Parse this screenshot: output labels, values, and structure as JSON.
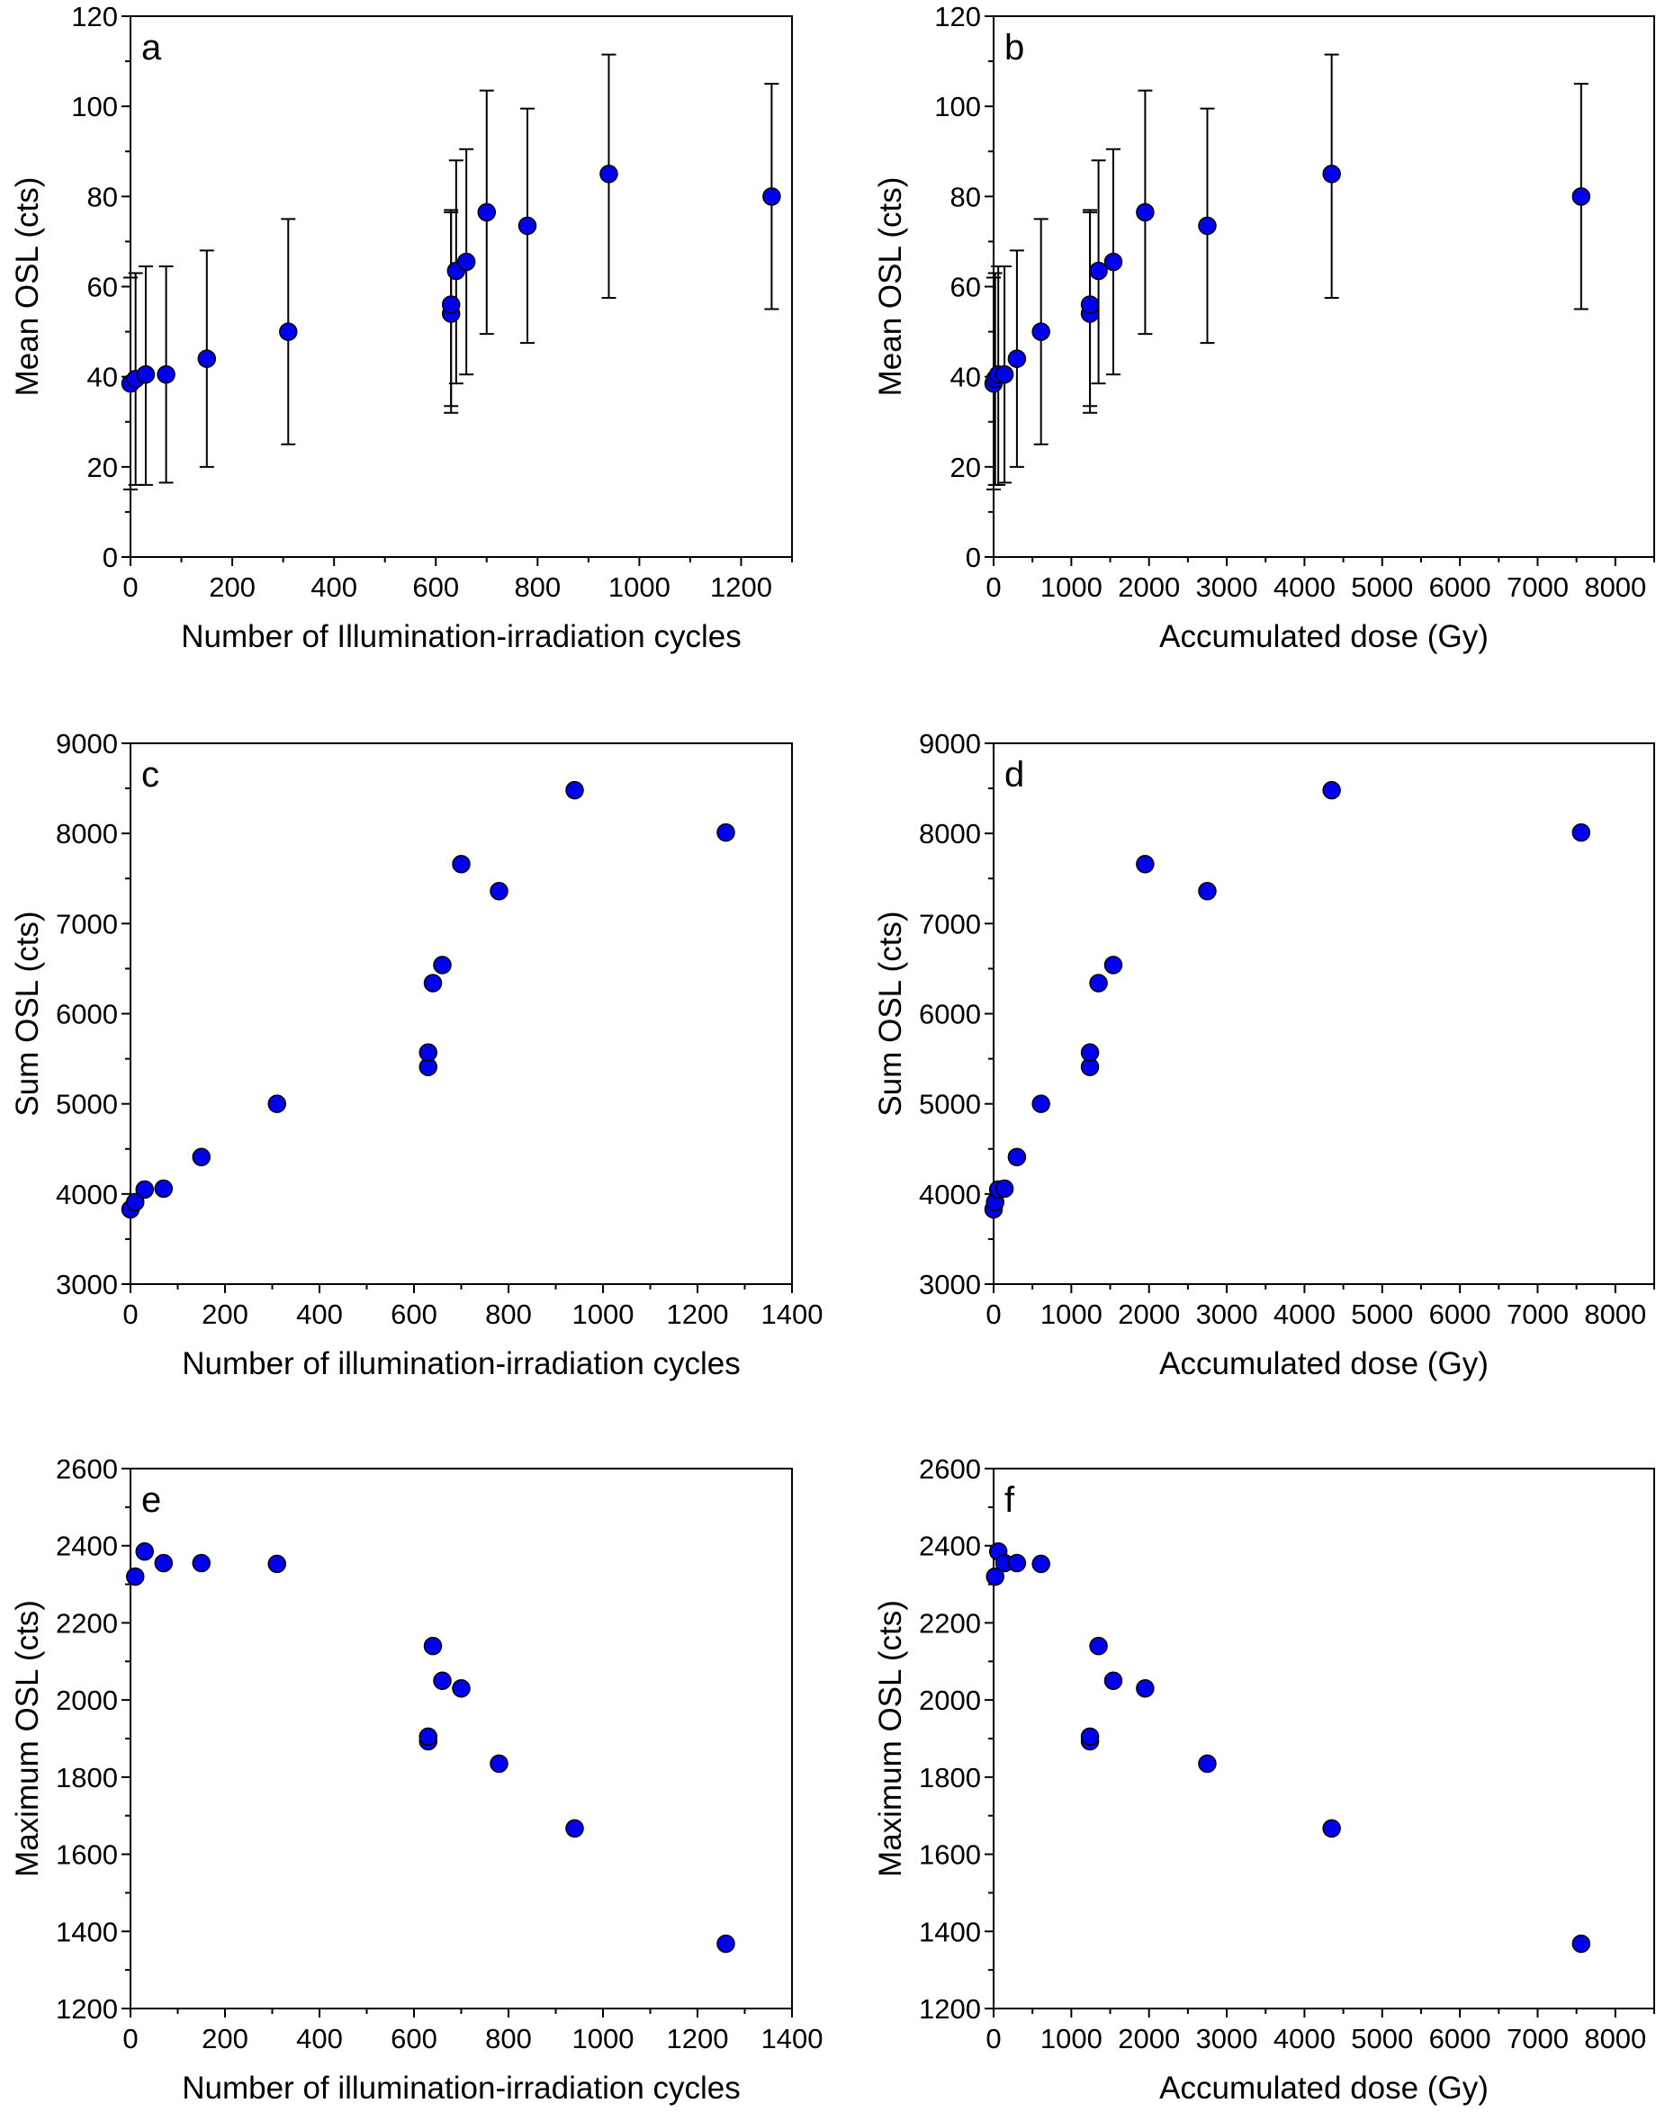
{
  "figure": {
    "marker_fill": "#0000ee",
    "marker_stroke": "#000000",
    "axis_color": "#000000"
  },
  "chart_data": [
    {
      "panel": "a",
      "type": "scatter",
      "xlabel": "Number of Illumination-irradiation cycles",
      "ylabel": "Mean OSL (cts)",
      "xlim": [
        0,
        1300
      ],
      "ylim": [
        0,
        120
      ],
      "xticks": [
        0,
        200,
        400,
        600,
        800,
        1000,
        1200
      ],
      "yticks": [
        0,
        20,
        40,
        60,
        80,
        100,
        120
      ],
      "x": [
        0,
        10,
        30,
        70,
        150,
        310,
        630,
        630,
        640,
        660,
        700,
        780,
        940,
        1260
      ],
      "y": [
        38.5,
        39.5,
        40.5,
        40.5,
        44,
        50,
        54,
        56,
        63.5,
        65.5,
        76.5,
        73.5,
        85,
        80
      ],
      "yerr_low": [
        15,
        16,
        16,
        16.5,
        20,
        25,
        32,
        33.5,
        38.5,
        40.5,
        49.5,
        47.5,
        57.5,
        55
      ],
      "yerr_high": [
        62,
        63,
        64.5,
        64.5,
        68,
        75,
        77,
        76.5,
        88,
        90.5,
        103.5,
        99.5,
        111.5,
        105
      ]
    },
    {
      "panel": "b",
      "type": "scatter",
      "xlabel": "Accumulated dose (Gy)",
      "ylabel": "Mean OSL (cts)",
      "xlim": [
        0,
        8500
      ],
      "ylim": [
        0,
        120
      ],
      "xticks": [
        0,
        1000,
        2000,
        3000,
        4000,
        5000,
        6000,
        7000,
        8000
      ],
      "yticks": [
        0,
        20,
        40,
        60,
        80,
        100,
        120
      ],
      "x": [
        0,
        20,
        60,
        140,
        300,
        610,
        1240,
        1240,
        1350,
        1540,
        1950,
        2750,
        4350,
        7560
      ],
      "y": [
        38.5,
        39.5,
        40.5,
        40.5,
        44,
        50,
        54,
        56,
        63.5,
        65.5,
        76.5,
        73.5,
        85,
        80
      ],
      "yerr_low": [
        15,
        16,
        16,
        16.5,
        20,
        25,
        32,
        33.5,
        38.5,
        40.5,
        49.5,
        47.5,
        57.5,
        55
      ],
      "yerr_high": [
        62,
        63,
        64.5,
        64.5,
        68,
        75,
        77,
        76.5,
        88,
        90.5,
        103.5,
        99.5,
        111.5,
        105
      ]
    },
    {
      "panel": "c",
      "type": "scatter",
      "xlabel": "Number of illumination-irradiation cycles",
      "ylabel": "Sum OSL (cts)",
      "xlim": [
        0,
        1400
      ],
      "ylim": [
        3000,
        9000
      ],
      "xticks": [
        0,
        200,
        400,
        600,
        800,
        1000,
        1200,
        1400
      ],
      "yticks": [
        3000,
        4000,
        5000,
        6000,
        7000,
        8000,
        9000
      ],
      "x": [
        0,
        10,
        30,
        70,
        150,
        310,
        630,
        630,
        640,
        660,
        700,
        780,
        940,
        1260
      ],
      "y": [
        3830,
        3910,
        4050,
        4060,
        4410,
        5000,
        5410,
        5570,
        6340,
        6540,
        7660,
        7360,
        8480,
        8010
      ]
    },
    {
      "panel": "d",
      "type": "scatter",
      "xlabel": "Accumulated dose (Gy)",
      "ylabel": "Sum OSL (cts)",
      "xlim": [
        0,
        8500
      ],
      "ylim": [
        3000,
        9000
      ],
      "xticks": [
        0,
        1000,
        2000,
        3000,
        4000,
        5000,
        6000,
        7000,
        8000
      ],
      "yticks": [
        3000,
        4000,
        5000,
        6000,
        7000,
        8000,
        9000
      ],
      "x": [
        0,
        20,
        60,
        140,
        300,
        610,
        1240,
        1240,
        1350,
        1540,
        1950,
        2750,
        4350,
        7560
      ],
      "y": [
        3830,
        3910,
        4050,
        4060,
        4410,
        5000,
        5410,
        5570,
        6340,
        6540,
        7660,
        7360,
        8480,
        8010
      ]
    },
    {
      "panel": "e",
      "type": "scatter",
      "xlabel": "Number of illumination-irradiation cycles",
      "ylabel": "Maximum OSL (cts)",
      "xlim": [
        0,
        1400
      ],
      "ylim": [
        1200,
        2600
      ],
      "xticks": [
        0,
        200,
        400,
        600,
        800,
        1000,
        1200,
        1400
      ],
      "yticks": [
        1200,
        1400,
        1600,
        1800,
        2000,
        2200,
        2400,
        2600
      ],
      "x": [
        10,
        30,
        70,
        150,
        310,
        630,
        630,
        640,
        660,
        700,
        780,
        940,
        1260
      ],
      "y": [
        2320,
        2385,
        2355,
        2355,
        2353,
        1893,
        1905,
        2140,
        2050,
        2030,
        1835,
        1667,
        1368
      ]
    },
    {
      "panel": "f",
      "type": "scatter",
      "xlabel": "Accumulated dose (Gy)",
      "ylabel": "Maximum OSL (cts)",
      "xlim": [
        0,
        8500
      ],
      "ylim": [
        1200,
        2600
      ],
      "xticks": [
        0,
        1000,
        2000,
        3000,
        4000,
        5000,
        6000,
        7000,
        8000
      ],
      "yticks": [
        1200,
        1400,
        1600,
        1800,
        2000,
        2200,
        2400,
        2600
      ],
      "x": [
        20,
        60,
        140,
        300,
        610,
        1240,
        1240,
        1350,
        1540,
        1950,
        2750,
        4350,
        7560
      ],
      "y": [
        2320,
        2385,
        2355,
        2355,
        2353,
        1893,
        1905,
        2140,
        2050,
        2030,
        1835,
        1667,
        1368
      ]
    }
  ]
}
